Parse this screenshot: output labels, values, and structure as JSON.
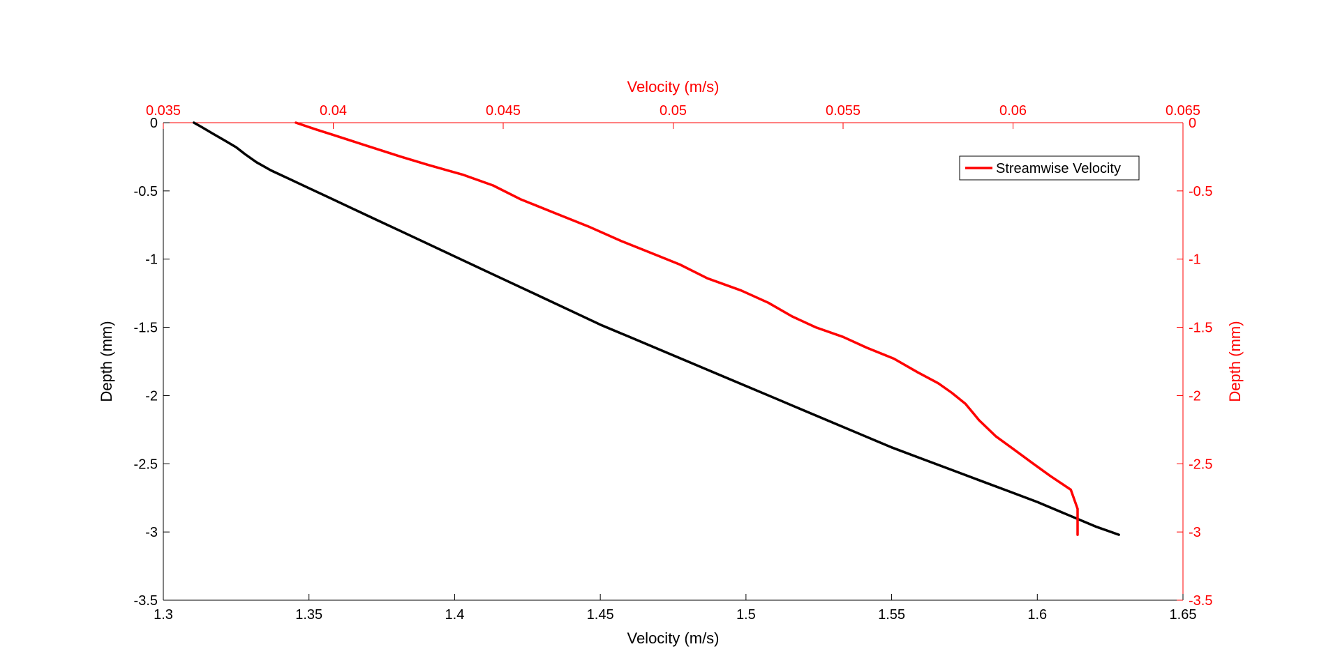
{
  "chart_data": {
    "type": "line",
    "grid": false,
    "axes": {
      "bottom": {
        "label": "Velocity (m/s)",
        "range": [
          1.3,
          1.65
        ],
        "ticks": [
          1.3,
          1.35,
          1.4,
          1.45,
          1.5,
          1.55,
          1.6,
          1.65
        ],
        "tick_labels": [
          "1.3",
          "1.35",
          "1.4",
          "1.45",
          "1.5",
          "1.55",
          "1.6",
          "1.65"
        ],
        "color": "#000000"
      },
      "left": {
        "label": "Depth (mm)",
        "range": [
          -3.5,
          0
        ],
        "ticks": [
          0,
          -0.5,
          -1,
          -1.5,
          -2,
          -2.5,
          -3,
          -3.5
        ],
        "tick_labels": [
          "0",
          "-0.5",
          "-1",
          "-1.5",
          "-2",
          "-2.5",
          "-3",
          "-3.5"
        ],
        "color": "#000000"
      },
      "top": {
        "label": "Velocity (m/s)",
        "range": [
          0.035,
          0.065
        ],
        "ticks": [
          0.035,
          0.04,
          0.045,
          0.05,
          0.055,
          0.06,
          0.065
        ],
        "tick_labels": [
          "0.035",
          "0.04",
          "0.045",
          "0.05",
          "0.055",
          "0.06",
          "0.065"
        ],
        "color": "#ff0000"
      },
      "right": {
        "label": "Depth (mm)",
        "range": [
          -3.5,
          0
        ],
        "ticks": [
          0,
          -0.5,
          -1,
          -1.5,
          -2,
          -2.5,
          -3,
          -3.5
        ],
        "tick_labels": [
          "0",
          "-0.5",
          "-1",
          "-1.5",
          "-2",
          "-2.5",
          "-3",
          "-3.5"
        ],
        "color": "#ff0000"
      }
    },
    "series": [
      {
        "axes": [
          "bottom",
          "left"
        ],
        "color": "#000000",
        "x": [
          1.3105,
          1.313,
          1.317,
          1.321,
          1.325,
          1.328,
          1.332,
          1.337,
          1.343,
          1.35,
          1.357,
          1.365,
          1.373,
          1.381,
          1.39,
          1.4,
          1.41,
          1.42,
          1.43,
          1.44,
          1.45,
          1.46,
          1.47,
          1.48,
          1.49,
          1.5,
          1.51,
          1.52,
          1.53,
          1.54,
          1.55,
          1.56,
          1.57,
          1.58,
          1.59,
          1.6,
          1.61,
          1.62,
          1.628
        ],
        "y": [
          0,
          -0.03,
          -0.08,
          -0.13,
          -0.18,
          -0.23,
          -0.29,
          -0.35,
          -0.41,
          -0.48,
          -0.55,
          -0.63,
          -0.71,
          -0.79,
          -0.88,
          -0.98,
          -1.08,
          -1.18,
          -1.28,
          -1.38,
          -1.48,
          -1.57,
          -1.66,
          -1.75,
          -1.84,
          -1.93,
          -2.02,
          -2.11,
          -2.2,
          -2.29,
          -2.38,
          -2.46,
          -2.54,
          -2.62,
          -2.7,
          -2.78,
          -2.87,
          -2.96,
          -3.02
        ]
      },
      {
        "name": "Streamwise Velocity",
        "axes": [
          "top",
          "right"
        ],
        "color": "#ff0000",
        "x": [
          0.0389,
          0.0395,
          0.04,
          0.041,
          0.042,
          0.0428,
          0.0438,
          0.0447,
          0.0455,
          0.0465,
          0.0475,
          0.0485,
          0.0495,
          0.0502,
          0.051,
          0.052,
          0.0528,
          0.0535,
          0.0542,
          0.055,
          0.0557,
          0.0565,
          0.0572,
          0.0578,
          0.0582,
          0.0586,
          0.059,
          0.0595,
          0.06,
          0.0606,
          0.0611,
          0.0617,
          0.0619,
          0.0619
        ],
        "y": [
          0,
          -0.05,
          -0.09,
          -0.17,
          -0.25,
          -0.31,
          -0.38,
          -0.46,
          -0.56,
          -0.66,
          -0.76,
          -0.87,
          -0.97,
          -1.04,
          -1.14,
          -1.23,
          -1.32,
          -1.42,
          -1.5,
          -1.57,
          -1.65,
          -1.73,
          -1.83,
          -1.91,
          -1.98,
          -2.06,
          -2.18,
          -2.3,
          -2.39,
          -2.5,
          -2.59,
          -2.69,
          -2.83,
          -3.02
        ]
      }
    ],
    "legend": {
      "position": "top-right",
      "entries": [
        "Streamwise Velocity"
      ]
    }
  }
}
